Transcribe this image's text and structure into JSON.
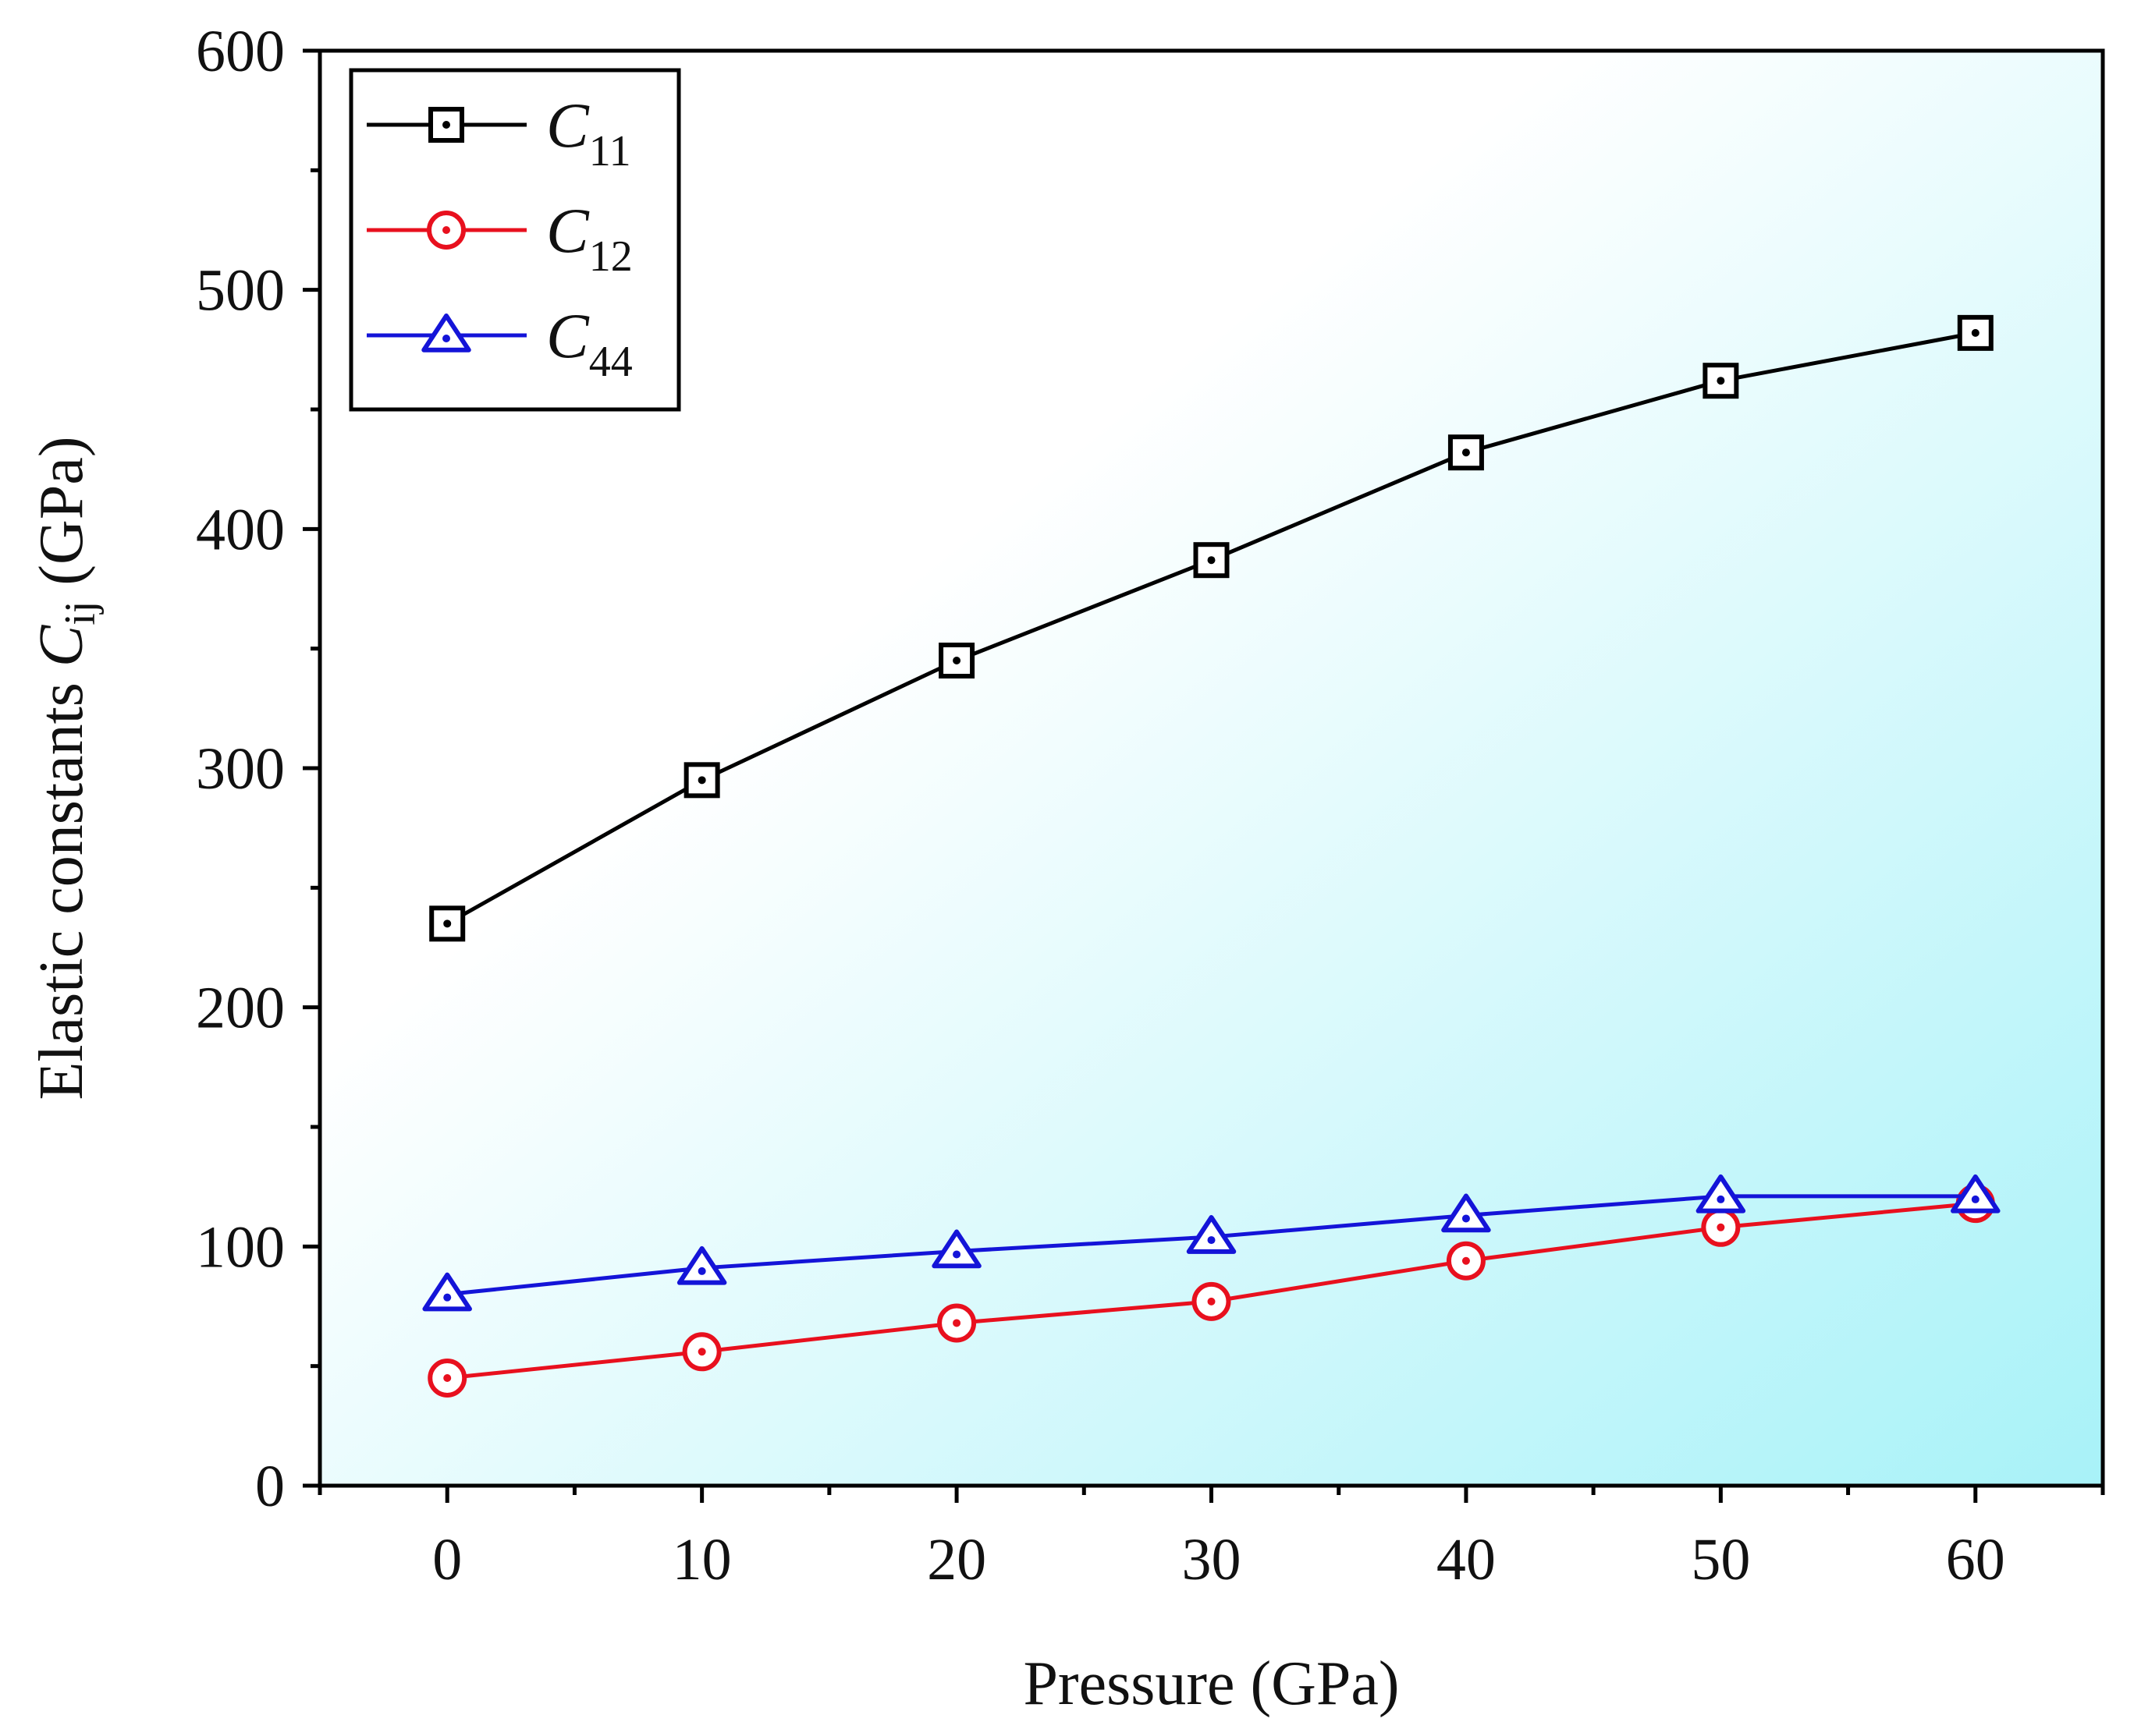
{
  "chart_data": {
    "type": "line",
    "xlabel": "Pressure (GPa)",
    "ylabel": {
      "prefix": "Elastic constants ",
      "symbol": "C",
      "subscript": "ij",
      "suffix": " (GPa)"
    },
    "xlim": [
      -5,
      65
    ],
    "ylim": [
      0,
      600
    ],
    "xticks": [
      0,
      10,
      20,
      30,
      40,
      50,
      60
    ],
    "yticks": [
      0,
      100,
      200,
      300,
      400,
      500,
      600
    ],
    "x": [
      0,
      10,
      20,
      30,
      40,
      50,
      60
    ],
    "legend_position": "top-left",
    "background": {
      "from": "#ffffff",
      "to": "#a8f2f8",
      "direction": "bottom-right"
    },
    "series": [
      {
        "name": "C11",
        "symbol": "C",
        "subscript": "11",
        "color": "#000000",
        "marker": "square",
        "values": [
          235,
          295,
          345,
          387,
          432,
          462,
          482
        ]
      },
      {
        "name": "C12",
        "symbol": "C",
        "subscript": "12",
        "color": "#e8101e",
        "marker": "circle",
        "values": [
          45,
          56,
          68,
          77,
          94,
          108,
          118
        ]
      },
      {
        "name": "C44",
        "symbol": "C",
        "subscript": "44",
        "color": "#1414d8",
        "marker": "triangle",
        "values": [
          80,
          91,
          98,
          104,
          113,
          121,
          121
        ]
      }
    ]
  }
}
